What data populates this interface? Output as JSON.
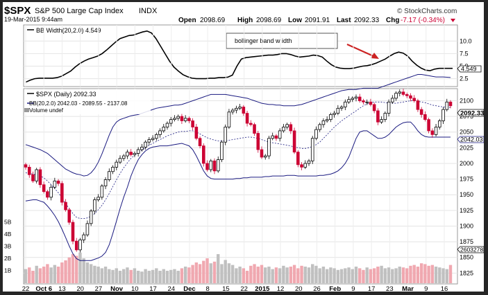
{
  "header": {
    "symbol": "$SPX",
    "name": "S&P 500 Large Cap Index",
    "exchange": "INDX",
    "datetime": "19-Mar-2015 9:44am",
    "open_label": "Open",
    "open": "2098.69",
    "high_label": "High",
    "high": "2098.69",
    "low_label": "Low",
    "low": "2091.91",
    "last_label": "Last",
    "last": "2092.33",
    "chg_label": "Chg",
    "chg": "-7.17 (-0.34%)",
    "brand": "© StockCharts.com",
    "chg_color": "#cc0033"
  },
  "upper_panel": {
    "legend": "BB Width(20,2.0) 4.549",
    "last_value_tag": "4.549",
    "annotation": "bollinger band w idth",
    "y_ticks": [
      2.5,
      5.0,
      7.5,
      10.0
    ],
    "y_range": [
      1.2,
      12.8
    ]
  },
  "main_panel": {
    "legend_price": "$SPX (Daily) 2092.33",
    "legend_bb": "BB(20,2.0) 2042.03 - 2089.55 - 2137.08",
    "legend_volume": "Volume undef",
    "price_tag": "2092.33",
    "lower_tag": "2042.03",
    "volume_tag": "2603278",
    "y_ticks": [
      1825,
      1850,
      1875,
      1900,
      1925,
      1950,
      1975,
      2000,
      2025,
      2050,
      2075,
      2100
    ],
    "y_range": [
      1811,
      2116
    ],
    "vol_ticks": [
      "1B",
      "2B",
      "3B",
      "4B",
      "5B"
    ],
    "x_labels": [
      "22",
      "Oct 6",
      "13",
      "20",
      "27",
      "Nov",
      "10",
      "17",
      "24",
      "Dec",
      "8",
      "15",
      "22",
      "2015",
      "12",
      "20",
      "26",
      "Feb",
      "9",
      "17",
      "23",
      "Mar",
      "9",
      "16"
    ],
    "bold_labels": [
      "Oct 6",
      "Nov",
      "Dec",
      "2015",
      "Feb",
      "Mar"
    ],
    "colors": {
      "up": "#000000",
      "down": "#cc0033",
      "vol_up": "#c0c0c0",
      "vol_down": "#f0a8b0",
      "band": "#1a1a80",
      "bbw": "#000000",
      "ma": "#1a1a80"
    }
  },
  "chart_data": [
    {
      "type": "line",
      "title": "BB Width(20,2.0) 4.549",
      "series": [
        {
          "name": "BB Width(20,2.0)",
          "values": [
            1.8,
            2.2,
            2.5,
            2.6,
            2.6,
            2.6,
            2.6,
            2.7,
            3,
            3.5,
            4,
            4.8,
            5.5,
            6,
            6.4,
            6.7,
            7,
            7.5,
            8.2,
            9,
            9.8,
            10.5,
            10.8,
            11.1,
            11.2,
            11.5,
            11.8,
            12,
            11.6,
            10.5,
            9,
            7.5,
            6,
            4.8,
            4,
            3.3,
            2.9,
            2.6,
            2.5,
            2.5,
            2.5,
            2.6,
            2.6,
            2.7,
            2.7,
            2.8,
            3.2,
            5,
            6.4,
            6.7,
            6.8,
            6.9,
            7,
            7.1,
            7.2,
            7.2,
            7.3,
            7.5,
            7.5,
            7.3,
            7,
            6.8,
            6.9,
            7,
            7.2,
            7.1,
            6.8,
            6,
            5.3,
            4.8,
            4.6,
            4.5,
            4.5,
            4.6,
            4.8,
            5,
            5.1,
            5.3,
            5.6,
            6,
            6.4,
            7,
            7.5,
            7.8,
            7.6,
            7,
            6,
            5.2,
            4.6,
            4.2,
            4.1,
            4.4,
            4.55,
            4.55,
            4.55,
            4.549
          ]
        }
      ]
    },
    {
      "type": "candlestick",
      "title": "$SPX (Daily) 2092.33",
      "x_labels": [
        "22",
        "Oct 6",
        "13",
        "20",
        "27",
        "Nov",
        "10",
        "17",
        "24",
        "Dec",
        "8",
        "15",
        "22",
        "2015",
        "12",
        "20",
        "26",
        "Feb",
        "9",
        "17",
        "23",
        "Mar",
        "9",
        "16"
      ],
      "close": [
        1994,
        1982,
        1972,
        1990,
        1966,
        1955,
        1946,
        1962,
        1972,
        1968,
        1938,
        1926,
        1906,
        1876,
        1862,
        1878,
        1886,
        1904,
        1924,
        1942,
        1946,
        1964,
        1974,
        1987,
        1994,
        2002,
        2008,
        2012,
        2018,
        2014,
        2016,
        2022,
        2026,
        2034,
        2038,
        2040,
        2046,
        2052,
        2058,
        2064,
        2070,
        2072,
        2075,
        2068,
        2072,
        2068,
        2058,
        2040,
        2028,
        2000,
        1990,
        2004,
        1988,
        2006,
        2034,
        2058,
        2082,
        2085,
        2088,
        2090,
        2080,
        2064,
        2062,
        2048,
        2022,
        2010,
        2012,
        2040,
        2044,
        2040,
        2052,
        2058,
        2062,
        2052,
        2018,
        1998,
        1994,
        2000,
        2004,
        2040,
        2054,
        2062,
        2068,
        2070,
        2078,
        2080,
        2088,
        2090,
        2098,
        2102,
        2104,
        2106,
        2100,
        2098,
        2098,
        2094,
        2084,
        2066,
        2070,
        2080,
        2098,
        2104,
        2112,
        2114,
        2110,
        2108,
        2104,
        2100,
        2086,
        2078,
        2070,
        2052,
        2046,
        2058,
        2068,
        2086,
        2098,
        2092
      ],
      "lower_band": [
        1940,
        1941,
        1942,
        1942,
        1940,
        1938,
        1932,
        1925,
        1917,
        1907,
        1895,
        1882,
        1868,
        1856,
        1848,
        1845,
        1845,
        1845,
        1845,
        1847,
        1849,
        1852,
        1858,
        1870,
        1888,
        1908,
        1928,
        1946,
        1962,
        1980,
        1994,
        2006,
        2014,
        2020,
        2024,
        2026,
        2027,
        2028,
        2028,
        2028,
        2029,
        2030,
        2031,
        2032,
        2030,
        2028,
        2022,
        2012,
        2000,
        1988,
        1980,
        1976,
        1975,
        1975,
        1975,
        1975,
        1975,
        1975,
        1976,
        1976,
        1977,
        1977,
        1978,
        1978,
        1978,
        1978,
        1979,
        1979,
        1980,
        1980,
        1980,
        1980,
        1981,
        1981,
        1981,
        1980,
        1980,
        1980,
        1980,
        1980,
        1980,
        1981,
        1981,
        1982,
        1983,
        1985,
        1988,
        1993,
        2000,
        2010,
        2025,
        2040,
        2050,
        2052,
        2052,
        2048,
        2044,
        2040,
        2040,
        2042,
        2046,
        2052,
        2058,
        2062,
        2065,
        2066,
        2066,
        2060,
        2052,
        2046,
        2043,
        2042,
        2042,
        2042,
        2042,
        2042,
        2042,
        2042
      ],
      "middle_band": [
        1985,
        1984,
        1983,
        1982,
        1980,
        1977,
        1972,
        1966,
        1960,
        1953,
        1945,
        1936,
        1928,
        1920,
        1914,
        1912,
        1912,
        1913,
        1916,
        1920,
        1926,
        1933,
        1942,
        1952,
        1963,
        1974,
        1984,
        1993,
        2001,
        2008,
        2013,
        2017,
        2021,
        2025,
        2029,
        2032,
        2035,
        2038,
        2041,
        2044,
        2046,
        2048,
        2050,
        2051,
        2051,
        2052,
        2052,
        2050,
        2047,
        2044,
        2041,
        2039,
        2037,
        2036,
        2036,
        2036,
        2037,
        2038,
        2039,
        2040,
        2041,
        2042,
        2042,
        2041,
        2040,
        2038,
        2036,
        2034,
        2033,
        2032,
        2031,
        2030,
        2029,
        2028,
        2026,
        2025,
        2024,
        2024,
        2025,
        2027,
        2030,
        2034,
        2040,
        2046,
        2052,
        2058,
        2063,
        2068,
        2072,
        2076,
        2080,
        2084,
        2088,
        2092,
        2095,
        2097,
        2098,
        2098,
        2098,
        2097,
        2096,
        2096,
        2096,
        2097,
        2098,
        2099,
        2100,
        2100,
        2099,
        2098,
        2097,
        2095,
        2093,
        2092,
        2091,
        2090,
        2089,
        2089.55
      ],
      "upper_band": [
        2030,
        2028,
        2026,
        2024,
        2022,
        2019,
        2016,
        2011,
        2006,
        2001,
        1996,
        1991,
        1988,
        1985,
        1983,
        1982,
        1980,
        1981,
        1985,
        1992,
        2002,
        2015,
        2030,
        2045,
        2058,
        2066,
        2070,
        2072,
        2074,
        2076,
        2077,
        2078,
        2080,
        2082,
        2084,
        2086,
        2088,
        2089,
        2090,
        2091,
        2092,
        2093,
        2093,
        2094,
        2096,
        2098,
        2100,
        2102,
        2104,
        2106,
        2108,
        2110,
        2110,
        2110,
        2110,
        2110,
        2109,
        2108,
        2107,
        2106,
        2105,
        2104,
        2102,
        2100,
        2098,
        2096,
        2095,
        2094,
        2094,
        2093,
        2093,
        2092,
        2092,
        2092,
        2092,
        2093,
        2094,
        2096,
        2098,
        2100,
        2102,
        2104,
        2106,
        2108,
        2110,
        2112,
        2114,
        2116,
        2117,
        2118,
        2118,
        2118,
        2119,
        2120,
        2120,
        2120,
        2120,
        2120,
        2122,
        2124,
        2126,
        2128,
        2130,
        2132,
        2134,
        2136,
        2138,
        2140,
        2142,
        2142,
        2141,
        2140,
        2139,
        2138,
        2138,
        2138,
        2137.5,
        2137.08
      ],
      "volume_relative": [
        0.34,
        0.38,
        0.3,
        0.42,
        0.36,
        0.4,
        0.46,
        0.38,
        0.44,
        0.4,
        0.5,
        0.55,
        0.62,
        0.7,
        0.66,
        0.74,
        0.6,
        0.5,
        0.46,
        0.42,
        0.4,
        0.36,
        0.4,
        0.34,
        0.32,
        0.36,
        0.3,
        0.34,
        0.38,
        0.32,
        0.36,
        0.3,
        0.28,
        0.34,
        0.3,
        0.32,
        0.36,
        0.3,
        0.34,
        0.3,
        0.32,
        0.34,
        0.3,
        0.36,
        0.4,
        0.38,
        0.44,
        0.5,
        0.46,
        0.54,
        0.6,
        0.48,
        0.52,
        0.7,
        0.46,
        0.56,
        0.48,
        0.44,
        0.36,
        0.4,
        0.36,
        0.3,
        0.42,
        0.46,
        0.4,
        0.44,
        0.38,
        0.4,
        0.34,
        0.38,
        0.36,
        0.42,
        0.38,
        0.4,
        0.44,
        0.36,
        0.42,
        0.4,
        0.38,
        0.46,
        0.42,
        0.36,
        0.4,
        0.34,
        0.38,
        0.36,
        0.32,
        0.34,
        0.36,
        0.38,
        0.34,
        0.4,
        0.36,
        0.32,
        0.38,
        0.34,
        0.36,
        0.4,
        0.42,
        0.36,
        0.38,
        0.34,
        0.36,
        0.4,
        0.38,
        0.36,
        0.42,
        0.44,
        0.4,
        0.48,
        0.46,
        0.42,
        0.44,
        0.4,
        0.38,
        0.36,
        0.34,
        0.44
      ]
    }
  ]
}
